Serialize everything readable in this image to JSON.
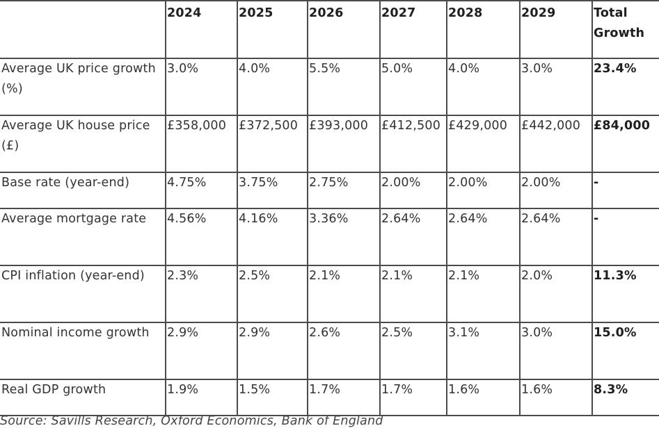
{
  "chart_data": {
    "type": "table",
    "columns": [
      "",
      "2024",
      "2025",
      "2026",
      "2027",
      "2028",
      "2029",
      "Total Growth"
    ],
    "rows": [
      {
        "label": "Average UK price growth (%)",
        "values": [
          "3.0%",
          "4.0%",
          "5.5%",
          "5.0%",
          "4.0%",
          "3.0%"
        ],
        "total": "23.4%"
      },
      {
        "label": "Average UK house price (£)",
        "values": [
          "£358,000",
          "£372,500",
          "£393,000",
          "£412,500",
          "£429,000",
          "£442,000"
        ],
        "total": "£84,000"
      },
      {
        "label": "Base rate (year-end)",
        "values": [
          "4.75%",
          "3.75%",
          "2.75%",
          "2.00%",
          "2.00%",
          "2.00%"
        ],
        "total": "-"
      },
      {
        "label": "Average mortgage rate",
        "values": [
          "4.56%",
          "4.16%",
          "3.36%",
          "2.64%",
          "2.64%",
          "2.64%"
        ],
        "total": "-"
      },
      {
        "label": "CPI inflation (year-end)",
        "values": [
          "2.3%",
          "2.5%",
          "2.1%",
          "2.1%",
          "2.1%",
          "2.0%"
        ],
        "total": "11.3%"
      },
      {
        "label": "Nominal income growth",
        "values": [
          "2.9%",
          "2.9%",
          "2.6%",
          "2.5%",
          "3.1%",
          "3.0%"
        ],
        "total": "15.0%"
      },
      {
        "label": "Real GDP growth",
        "values": [
          "1.9%",
          "1.5%",
          "1.7%",
          "1.7%",
          "1.6%",
          "1.6%"
        ],
        "total": "8.3%"
      }
    ],
    "source": "Source: Savills Research, Oxford Economics, Bank of England"
  }
}
